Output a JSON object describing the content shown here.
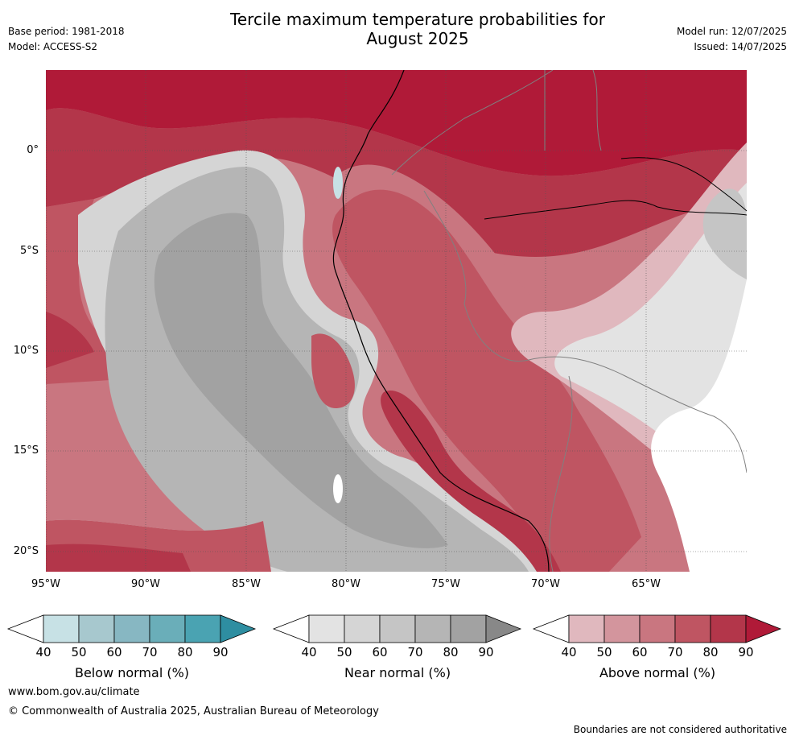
{
  "title": "Tercile maximum temperature probabilities for\nAugust 2025",
  "meta": {
    "base_period": "Base period: 1981-2018",
    "model": "Model: ACCESS-S2",
    "model_run": "Model run: 12/07/2025",
    "issued": "Issued: 14/07/2025"
  },
  "axes": {
    "lat_labels": [
      "0°",
      "5°S",
      "10°S",
      "15°S",
      "20°S"
    ],
    "lon_labels": [
      "95°W",
      "90°W",
      "85°W",
      "80°W",
      "75°W",
      "70°W",
      "65°W"
    ]
  },
  "colorbars": [
    {
      "label": "Below normal (%)",
      "ticks": [
        "40",
        "50",
        "60",
        "70",
        "80",
        "90"
      ],
      "colors": [
        "#c7e1e5",
        "#a7c8ce",
        "#87b7c2",
        "#6aaeb9",
        "#4aa3b2",
        "#2e8ea1"
      ]
    },
    {
      "label": "Near normal (%)",
      "ticks": [
        "40",
        "50",
        "60",
        "70",
        "80",
        "90"
      ],
      "colors": [
        "#e3e3e3",
        "#d5d5d5",
        "#c5c5c5",
        "#b5b5b5",
        "#a2a2a2",
        "#888888"
      ]
    },
    {
      "label": "Above normal (%)",
      "ticks": [
        "40",
        "50",
        "60",
        "70",
        "80",
        "90"
      ],
      "colors": [
        "#e0b8be",
        "#d3959d",
        "#c97680",
        "#bf5562",
        "#b3364a",
        "#b01a38"
      ]
    }
  ],
  "footer": {
    "site": "www.bom.gov.au/climate",
    "copyright": "© Commonwealth of Australia 2025, Australian Bureau of Meteorology",
    "disclaimer": "Boundaries are not considered authoritative"
  },
  "colors": {
    "above_90": "#b01a38",
    "above_80": "#b3364a",
    "above_70": "#bf5562",
    "above_60": "#c97680",
    "above_50": "#d3959d",
    "above_40": "#e0b8be",
    "near_40": "#e3e3e3",
    "near_50": "#d5d5d5",
    "near_60": "#c5c5c5",
    "near_70": "#b5b5b5",
    "near_80": "#a2a2a2",
    "near_90": "#888888",
    "below_40": "#c7e1e5"
  }
}
